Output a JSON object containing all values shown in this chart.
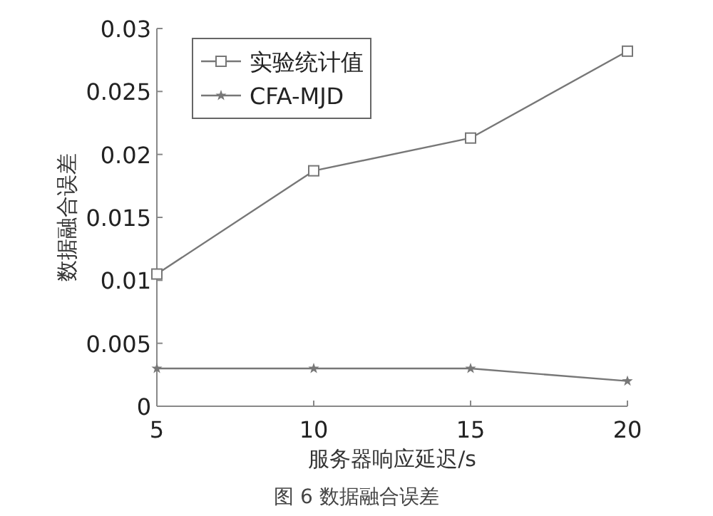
{
  "chart_data": {
    "type": "line",
    "xlabel": "服务器响应延迟/s",
    "ylabel": "数据融合误差",
    "annotations": [
      "图 6 数据融合误差"
    ],
    "x": [
      5,
      10,
      15,
      20
    ],
    "series": [
      {
        "name": "实验统计值",
        "color": "#777777",
        "marker": "square",
        "values": [
          0.0105,
          0.0187,
          0.0213,
          0.0282
        ]
      },
      {
        "name": "CFA-MJD",
        "color": "#777777",
        "marker": "star",
        "values": [
          0.003,
          0.003,
          0.003,
          0.002
        ]
      }
    ],
    "xlim": [
      5,
      20
    ],
    "ylim": [
      0,
      0.03
    ],
    "xticks": [
      5,
      10,
      15,
      20
    ],
    "yticks": [
      0,
      0.005,
      0.01,
      0.015,
      0.02,
      0.025,
      0.03
    ],
    "legend": "top left",
    "grid": false
  }
}
